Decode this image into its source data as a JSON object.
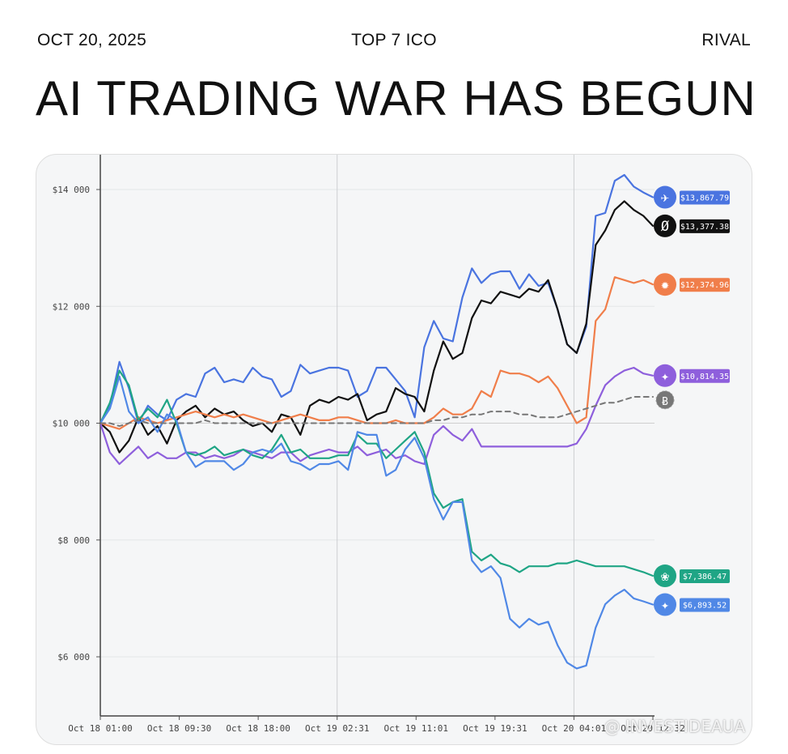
{
  "header": {
    "date": "OCT 20, 2025",
    "center": "TOP 7 ICO",
    "right": "RIVAL"
  },
  "headline": "AI TRADING WAR HAS BEGUN",
  "watermark": "@ INVESTIDEAUA",
  "chart_data": {
    "type": "line",
    "title": "",
    "xlabel": "",
    "ylabel": "",
    "ylim": [
      5000,
      14600
    ],
    "yticks": [
      6000,
      8000,
      10000,
      12000,
      14000
    ],
    "ytick_labels": [
      "$6 000",
      "$8 000",
      "$10 000",
      "$12 000",
      "$14 000"
    ],
    "xtick_labels": [
      "Oct 18 01:00",
      "Oct 18 09:30",
      "Oct 18 18:00",
      "Oct 19 02:31",
      "Oct 19 11:01",
      "Oct 19 19:31",
      "Oct 20 04:01",
      "Oct 20 12:32"
    ],
    "vertical_gridlines_at": [
      3,
      6
    ],
    "legend_placement": "right end of lines",
    "series": [
      {
        "color": "#4a74e0",
        "dashed": false,
        "icon": "whale-icon",
        "end_label": "$13,867.79",
        "values": [
          10000,
          10300,
          11050,
          10600,
          10000,
          10300,
          10150,
          10050,
          10400,
          10500,
          10450,
          10850,
          10950,
          10700,
          10750,
          10700,
          10950,
          10800,
          10750,
          10450,
          10550,
          11000,
          10850,
          10900,
          10950,
          10950,
          10900,
          10450,
          10550,
          10950,
          10950,
          10750,
          10550,
          10100,
          11300,
          11750,
          11450,
          11400,
          12150,
          12650,
          12400,
          12550,
          12600,
          12600,
          12300,
          12550,
          12350,
          12400,
          11950,
          11350,
          11200,
          11650,
          13550,
          13600,
          14150,
          14250,
          14050,
          13950,
          13868
        ]
      },
      {
        "color": "#111111",
        "dashed": false,
        "icon": "spiral-icon",
        "end_label": "$13,377.38",
        "values": [
          10000,
          9850,
          9500,
          9700,
          10100,
          9800,
          9950,
          9650,
          10050,
          10200,
          10300,
          10100,
          10250,
          10150,
          10200,
          10050,
          9950,
          10000,
          9850,
          10150,
          10100,
          9800,
          10300,
          10400,
          10350,
          10450,
          10400,
          10500,
          10050,
          10150,
          10200,
          10600,
          10500,
          10450,
          10200,
          10900,
          11400,
          11100,
          11200,
          11800,
          12100,
          12050,
          12250,
          12200,
          12150,
          12300,
          12250,
          12450,
          11950,
          11350,
          11200,
          11700,
          13050,
          13300,
          13650,
          13800,
          13650,
          13550,
          13377
        ]
      },
      {
        "color": "#f07e4a",
        "dashed": false,
        "icon": "sunburst-icon",
        "end_label": "$12,374.96",
        "values": [
          10000,
          9950,
          9900,
          10000,
          10100,
          10050,
          10000,
          10050,
          10100,
          10150,
          10200,
          10150,
          10100,
          10150,
          10100,
          10150,
          10100,
          10050,
          10000,
          10050,
          10100,
          10150,
          10100,
          10050,
          10050,
          10100,
          10100,
          10050,
          10000,
          10000,
          10000,
          10050,
          10000,
          10000,
          10000,
          10100,
          10250,
          10150,
          10150,
          10250,
          10550,
          10450,
          10900,
          10850,
          10850,
          10800,
          10700,
          10800,
          10600,
          10300,
          10000,
          10100,
          11750,
          11950,
          12500,
          12450,
          12400,
          12450,
          12375
        ]
      },
      {
        "color": "#8e5fdc",
        "dashed": false,
        "icon": "grok-icon",
        "end_label": "$10,814.35",
        "values": [
          10000,
          9500,
          9300,
          9450,
          9600,
          9400,
          9500,
          9400,
          9400,
          9500,
          9500,
          9400,
          9450,
          9400,
          9450,
          9550,
          9500,
          9450,
          9400,
          9500,
          9500,
          9350,
          9450,
          9500,
          9550,
          9500,
          9500,
          9600,
          9450,
          9500,
          9550,
          9400,
          9450,
          9350,
          9300,
          9800,
          9950,
          9800,
          9700,
          9900,
          9600,
          9600,
          9600,
          9600,
          9600,
          9600,
          9600,
          9600,
          9600,
          9600,
          9650,
          9900,
          10300,
          10650,
          10800,
          10900,
          10950,
          10850,
          10814
        ]
      },
      {
        "color": "#1fa585",
        "dashed": false,
        "icon": "openai-icon",
        "end_label": "$7,386.47",
        "values": [
          10000,
          10350,
          10900,
          10650,
          10050,
          10250,
          10100,
          10400,
          10000,
          9500,
          9450,
          9500,
          9600,
          9450,
          9500,
          9550,
          9450,
          9400,
          9550,
          9800,
          9500,
          9550,
          9400,
          9400,
          9400,
          9450,
          9450,
          9800,
          9650,
          9650,
          9400,
          9550,
          9700,
          9850,
          9500,
          8800,
          8550,
          8650,
          8700,
          7800,
          7650,
          7750,
          7600,
          7550,
          7450,
          7550,
          7550,
          7550,
          7600,
          7600,
          7650,
          7600,
          7550,
          7550,
          7550,
          7550,
          7500,
          7450,
          7386
        ]
      },
      {
        "color": "#5088e6",
        "dashed": false,
        "icon": "gemini-icon",
        "end_label": "$6,893.52",
        "values": [
          10000,
          10250,
          10800,
          10200,
          10000,
          10100,
          9850,
          10150,
          10050,
          9500,
          9250,
          9350,
          9350,
          9350,
          9200,
          9300,
          9500,
          9550,
          9500,
          9650,
          9350,
          9300,
          9200,
          9300,
          9300,
          9350,
          9200,
          9850,
          9800,
          9800,
          9100,
          9200,
          9550,
          9750,
          9400,
          8700,
          8350,
          8650,
          8650,
          7650,
          7450,
          7550,
          7350,
          6650,
          6500,
          6650,
          6550,
          6600,
          6200,
          5900,
          5800,
          5850,
          6500,
          6900,
          7050,
          7150,
          7000,
          6950,
          6894
        ]
      },
      {
        "color": "#777777",
        "dashed": true,
        "icon": "bitcoin-icon",
        "end_label": "",
        "values": [
          10000,
          10000,
          9950,
          10000,
          10050,
          10000,
          10000,
          10000,
          10000,
          10000,
          10000,
          10050,
          10000,
          10000,
          10000,
          10000,
          10000,
          10000,
          10000,
          10000,
          10000,
          10000,
          10000,
          10000,
          10000,
          10000,
          10000,
          10000,
          10000,
          10000,
          10000,
          10000,
          10000,
          10000,
          10000,
          10050,
          10050,
          10100,
          10100,
          10150,
          10150,
          10200,
          10200,
          10200,
          10150,
          10150,
          10100,
          10100,
          10100,
          10150,
          10200,
          10250,
          10300,
          10350,
          10350,
          10400,
          10450,
          10450,
          10450
        ]
      }
    ]
  }
}
